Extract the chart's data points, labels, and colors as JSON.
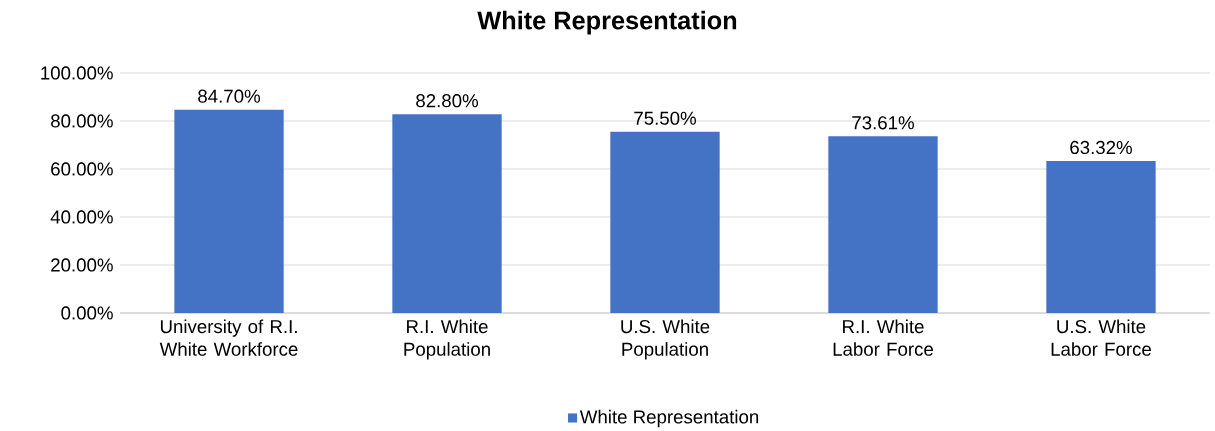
{
  "chart_data": {
    "type": "bar",
    "title": "White Representation",
    "categories": [
      "University of R.I. White Workforce",
      "R.I. White Population",
      "U.S. White Population",
      "R.I. White Labor Force",
      "U.S. White Labor Force"
    ],
    "series": [
      {
        "name": "White Representation",
        "color": "#4472c4",
        "values": [
          84.7,
          82.8,
          75.5,
          73.61,
          63.32
        ],
        "value_labels": [
          "84.70%",
          "82.80%",
          "75.50%",
          "73.61%",
          "63.32%"
        ]
      }
    ],
    "ylim": [
      0,
      100
    ],
    "yticks": [
      {
        "value": 0,
        "label": "0.00%"
      },
      {
        "value": 20,
        "label": "20.00%"
      },
      {
        "value": 40,
        "label": "40.00%"
      },
      {
        "value": 60,
        "label": "60.00%"
      },
      {
        "value": 80,
        "label": "80.00%"
      },
      {
        "value": 100,
        "label": "100.00%"
      }
    ],
    "grid": "y",
    "legend": "bottom"
  }
}
